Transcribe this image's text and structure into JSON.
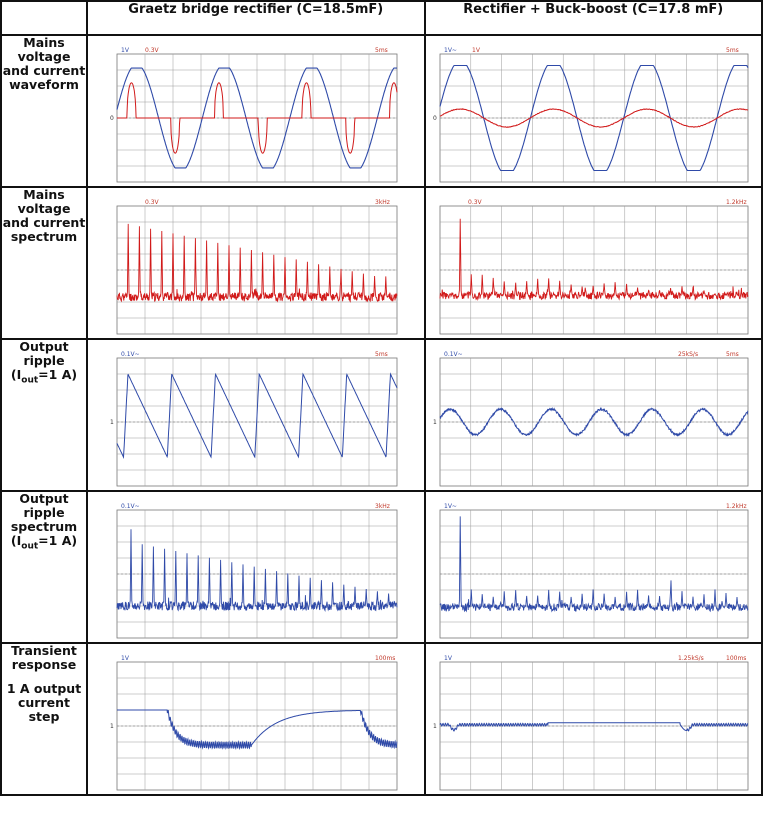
{
  "header": {
    "col1": "Graetz bridge rectifier (C=18.5mF)",
    "col2": "Rectifier + Buck-boost (C=17.8 mF)"
  },
  "rows": [
    {
      "lines": [
        "Mains",
        "voltage",
        "and current",
        "waveform"
      ]
    },
    {
      "lines": [
        "Mains",
        "voltage",
        "and current",
        "spectrum"
      ]
    },
    {
      "lines": [
        "Output",
        "ripple"
      ],
      "iout": "(I",
      "iout_sub": "out",
      "iout_tail": "=1 A)"
    },
    {
      "lines": [
        "Output",
        "ripple",
        "spectrum"
      ],
      "iout": "(I",
      "iout_sub": "out",
      "iout_tail": "=1 A)"
    },
    {
      "lines": [
        "Transient",
        "response"
      ],
      "extra": [
        "1 A output",
        "current",
        "step"
      ]
    }
  ],
  "scopes": {
    "r1c1": {
      "ch1": "1V",
      "ch2": "0.3V",
      "time": "5ms",
      "marker": "0"
    },
    "r1c2": {
      "ch1": "1V~",
      "ch2": "1V",
      "time": "5ms",
      "marker": "0"
    },
    "r2c1": {
      "ch2": "0.3V",
      "time": "3kHz"
    },
    "r2c2": {
      "ch2": "0.3V",
      "time": "1.2kHz"
    },
    "r3c1": {
      "ch1": "0.1V~",
      "time": "5ms",
      "marker": "1"
    },
    "r3c2": {
      "ch1": "0.1V~",
      "rate": "25kS/s",
      "time": "5ms",
      "marker": "1"
    },
    "r4c1": {
      "ch1": "0.1V~",
      "time": "3kHz"
    },
    "r4c2": {
      "ch1": "1V~",
      "time": "1.2kHz"
    },
    "r5c1": {
      "ch1": "1V",
      "time": "100ms",
      "marker": "1"
    },
    "r5c2": {
      "ch1": "1V",
      "rate": "1.25kS/s",
      "time": "100ms",
      "marker": "1"
    }
  },
  "colors": {
    "blue": "#2f4aa8",
    "red": "#d11a1a",
    "grid": "#9a9a9a",
    "label_blue": "#2f4aa8",
    "label_red": "#c0392b"
  }
}
